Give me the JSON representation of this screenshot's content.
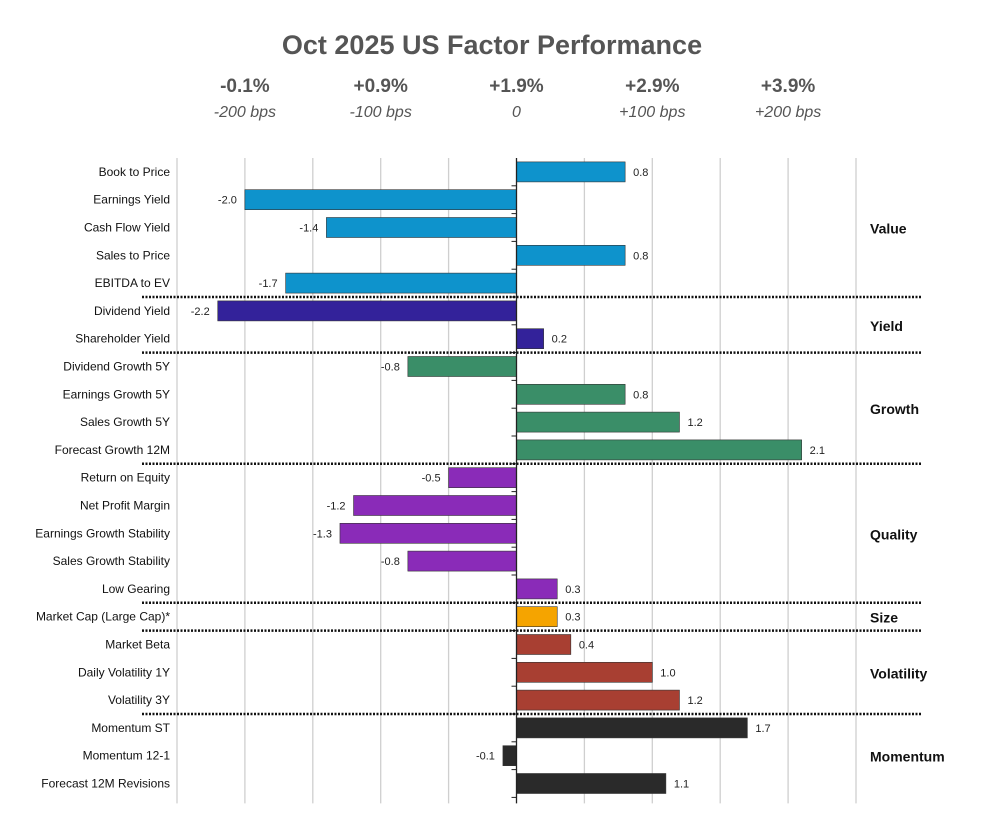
{
  "chart_data": {
    "type": "bar",
    "orientation": "horizontal",
    "title": "Oct 2025 US Factor Performance",
    "xlim": [
      -2.5,
      2.5
    ],
    "grid": true,
    "top_axis": [
      {
        "value": -2.0,
        "pct": "-0.1%",
        "bps": "-200 bps"
      },
      {
        "value": -1.0,
        "pct": "+0.9%",
        "bps": "-100 bps"
      },
      {
        "value": 0,
        "pct": "+1.9%",
        "bps": "0"
      },
      {
        "value": 1.0,
        "pct": "+2.9%",
        "bps": "+100 bps"
      },
      {
        "value": 2.0,
        "pct": "+3.9%",
        "bps": "+200 bps"
      }
    ],
    "groups": [
      {
        "name": "Value",
        "color": "#0E93CC",
        "items": [
          {
            "label": "Book to Price",
            "value": 0.8,
            "value_label": "0.8"
          },
          {
            "label": "Earnings Yield",
            "value": -2.0,
            "value_label": "-2.0"
          },
          {
            "label": "Cash Flow Yield",
            "value": -1.4,
            "value_label": "-1.4"
          },
          {
            "label": "Sales to Price",
            "value": 0.8,
            "value_label": "0.8"
          },
          {
            "label": "EBITDA to EV",
            "value": -1.7,
            "value_label": "-1.7"
          }
        ]
      },
      {
        "name": "Yield",
        "color": "#33229A",
        "items": [
          {
            "label": "Dividend Yield",
            "value": -2.2,
            "value_label": "-2.2"
          },
          {
            "label": "Shareholder Yield",
            "value": 0.2,
            "value_label": "0.2"
          }
        ]
      },
      {
        "name": "Growth",
        "color": "#3A8E68",
        "items": [
          {
            "label": "Dividend Growth 5Y",
            "value": -0.8,
            "value_label": "-0.8"
          },
          {
            "label": "Earnings Growth 5Y",
            "value": 0.8,
            "value_label": "0.8"
          },
          {
            "label": "Sales Growth 5Y",
            "value": 1.2,
            "value_label": "1.2"
          },
          {
            "label": "Forecast Growth 12M",
            "value": 2.1,
            "value_label": "2.1"
          }
        ]
      },
      {
        "name": "Quality",
        "color": "#8A2BB8",
        "items": [
          {
            "label": "Return on Equity",
            "value": -0.5,
            "value_label": "-0.5"
          },
          {
            "label": "Net Profit Margin",
            "value": -1.2,
            "value_label": "-1.2"
          },
          {
            "label": "Earnings Growth Stability",
            "value": -1.3,
            "value_label": "-1.3"
          },
          {
            "label": "Sales Growth Stability",
            "value": -0.8,
            "value_label": "-0.8"
          },
          {
            "label": "Low Gearing",
            "value": 0.3,
            "value_label": "0.3"
          }
        ]
      },
      {
        "name": "Size",
        "color": "#F5A400",
        "items": [
          {
            "label": "Market Cap (Large Cap)*",
            "value": 0.3,
            "value_label": "0.3"
          }
        ]
      },
      {
        "name": "Volatility",
        "color": "#A83F32",
        "items": [
          {
            "label": "Market Beta",
            "value": 0.4,
            "value_label": "0.4"
          },
          {
            "label": "Daily Volatility 1Y",
            "value": 1.0,
            "value_label": "1.0"
          },
          {
            "label": "Volatility 3Y",
            "value": 1.2,
            "value_label": "1.2"
          }
        ]
      },
      {
        "name": "Momentum",
        "color": "#2A2A2A",
        "items": [
          {
            "label": "Momentum ST",
            "value": 1.7,
            "value_label": "1.7"
          },
          {
            "label": "Momentum 12-1",
            "value": -0.1,
            "value_label": "-0.1"
          },
          {
            "label": "Forecast 12M Revisions",
            "value": 1.1,
            "value_label": "1.1"
          }
        ]
      }
    ]
  }
}
